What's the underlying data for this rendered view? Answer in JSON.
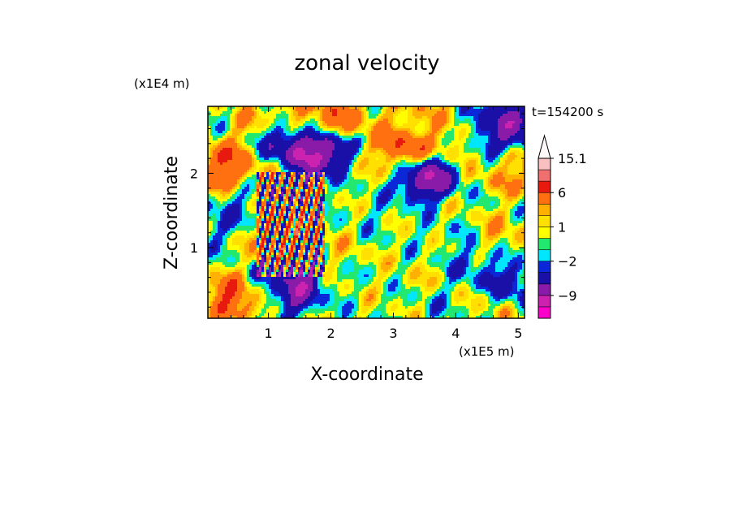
{
  "chart_data": {
    "type": "heatmap",
    "title": "zonal velocity",
    "xlabel": "X-coordinate",
    "ylabel": "Z-coordinate",
    "x_unit": "(x1E5 m)",
    "y_unit": "(x1E4 m)",
    "time_label": "t=154200 s",
    "xlim": [
      0.03,
      5.1
    ],
    "ylim": [
      0.05,
      2.9
    ],
    "x_ticks": [
      1,
      2,
      3,
      4,
      5
    ],
    "y_ticks": [
      1,
      2
    ],
    "grid": false,
    "colorbar": {
      "levels": [
        -15,
        -12,
        -9,
        -6,
        -3,
        -2,
        -1,
        0,
        1,
        2,
        3,
        6,
        9,
        12,
        15.1
      ],
      "labels": [
        {
          "value": 15.1,
          "text": "15.1"
        },
        {
          "value": 6,
          "text": "6"
        },
        {
          "value": 1,
          "text": "1"
        },
        {
          "value": -2,
          "text": "−2"
        },
        {
          "value": -9,
          "text": "−9"
        }
      ],
      "colors": [
        "#ff00c8",
        "#cc22b0",
        "#8a1aa8",
        "#1a10a8",
        "#0a28d8",
        "#00e6ff",
        "#22e870",
        "#ffff00",
        "#ffe000",
        "#ffb000",
        "#ff7010",
        "#e81a10",
        "#f07070",
        "#f8c0c0"
      ],
      "extend_top": true
    },
    "features": [
      {
        "x": 0.3,
        "z": 2.1,
        "value": 7
      },
      {
        "x": 0.9,
        "z": 2.6,
        "value": 4
      },
      {
        "x": 1.2,
        "z": 2.5,
        "value": -10
      },
      {
        "x": 1.8,
        "z": 2.3,
        "value": -12
      },
      {
        "x": 1.5,
        "z": 2.75,
        "value": 4
      },
      {
        "x": 2.1,
        "z": 2.75,
        "value": 5
      },
      {
        "x": 2.8,
        "z": 2.1,
        "value": 0
      },
      {
        "x": 3.1,
        "z": 2.3,
        "value": 8
      },
      {
        "x": 3.3,
        "z": 2.7,
        "value": 3
      },
      {
        "x": 3.5,
        "z": 1.95,
        "value": -10
      },
      {
        "x": 4.0,
        "z": 2.45,
        "value": 3
      },
      {
        "x": 4.5,
        "z": 2.55,
        "value": -6
      },
      {
        "x": 4.9,
        "z": 2.65,
        "value": -8
      },
      {
        "x": 4.9,
        "z": 2.0,
        "value": 3
      },
      {
        "x": 0.2,
        "z": 1.3,
        "value": -3
      },
      {
        "x": 0.6,
        "z": 1.5,
        "value": -2
      },
      {
        "x": 0.7,
        "z": 1.05,
        "value": 1
      },
      {
        "x": 1.15,
        "z": 1.2,
        "value": 4
      },
      {
        "x": 1.6,
        "z": 1.3,
        "value": 1
      },
      {
        "x": 1.5,
        "z": 0.45,
        "value": -10
      },
      {
        "x": 0.5,
        "z": 0.35,
        "value": 8
      },
      {
        "x": 0.9,
        "z": 0.5,
        "value": -3
      },
      {
        "x": 2.3,
        "z": 1.0,
        "value": 1
      },
      {
        "x": 2.6,
        "z": 1.4,
        "value": -1
      },
      {
        "x": 3.0,
        "z": 0.8,
        "value": 0
      },
      {
        "x": 3.4,
        "z": 0.6,
        "value": 1
      },
      {
        "x": 3.9,
        "z": 1.1,
        "value": -1
      },
      {
        "x": 4.3,
        "z": 0.8,
        "value": -3
      },
      {
        "x": 4.7,
        "z": 1.2,
        "value": 2
      },
      {
        "x": 4.9,
        "z": 0.5,
        "value": -5
      },
      {
        "x": 2.0,
        "z": 0.4,
        "value": 0
      },
      {
        "x": 2.5,
        "z": 0.2,
        "value": 0
      },
      {
        "x": 3.7,
        "z": 0.3,
        "value": -1
      },
      {
        "x": 4.6,
        "z": 0.15,
        "value": 1
      }
    ]
  }
}
